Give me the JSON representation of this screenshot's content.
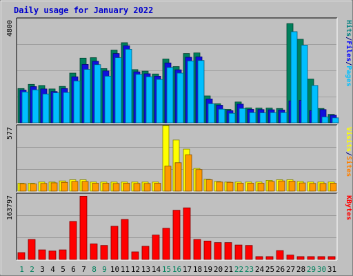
{
  "chart_data": {
    "type": "bar",
    "title": "Daily usage for January 2022",
    "categories": [
      "1",
      "2",
      "3",
      "4",
      "5",
      "6",
      "7",
      "8",
      "9",
      "10",
      "11",
      "12",
      "13",
      "14",
      "15",
      "16",
      "17",
      "18",
      "19",
      "20",
      "21",
      "22",
      "23",
      "24",
      "25",
      "26",
      "27",
      "28",
      "29",
      "30",
      "31"
    ],
    "weekend_days": [
      "1",
      "2",
      "8",
      "9",
      "15",
      "16",
      "22",
      "23",
      "29",
      "30"
    ],
    "panels": [
      {
        "id": "hits-files-pages",
        "axis_max_label": "4800",
        "ylim": [
          0,
          4800
        ],
        "legend": [
          {
            "label": "Pages",
            "color": "#00bfff"
          },
          {
            "label": "/",
            "color": "#000080"
          },
          {
            "label": "Files",
            "color": "#0000ff"
          },
          {
            "label": "/",
            "color": "#000080"
          },
          {
            "label": "Hits",
            "color": "#008080"
          }
        ],
        "series": [
          {
            "name": "Hits",
            "color": "#00805c",
            "values": [
              1580,
              1770,
              1720,
              1560,
              1680,
              2290,
              2980,
              3000,
              2500,
              3350,
              3690,
              2450,
              2380,
              2250,
              2940,
              2590,
              3190,
              3220,
              1240,
              880,
              620,
              960,
              690,
              680,
              680,
              660,
              4570,
              3850,
              2020,
              660,
              390
            ]
          },
          {
            "name": "Files",
            "color": "#1010dd",
            "values": [
              1510,
              1670,
              1560,
              1440,
              1580,
              2120,
              2690,
              2840,
              2390,
              3190,
              3550,
              2350,
              2260,
              2150,
              2760,
              2440,
              3020,
              3040,
              1100,
              810,
              560,
              860,
              620,
              610,
              600,
              590,
              1010,
              1030,
              560,
              610,
              350
            ]
          },
          {
            "name": "Pages",
            "color": "#00bfff",
            "values": [
              1420,
              1520,
              1330,
              1380,
              1400,
              1930,
              2460,
              2680,
              2150,
              3000,
              3390,
              2230,
              2120,
              2000,
              2550,
              2290,
              2850,
              2870,
              880,
              630,
              440,
              660,
              470,
              460,
              470,
              470,
              4200,
              3580,
              1720,
              270,
              230
            ]
          }
        ]
      },
      {
        "id": "visits-sites",
        "axis_max_label": "577",
        "ylim": [
          0,
          577
        ],
        "legend": [
          {
            "label": "Sites",
            "color": "#ff8000"
          },
          {
            "label": "/",
            "color": "#000080"
          },
          {
            "label": "Visits",
            "color": "#ffff00"
          }
        ],
        "series": [
          {
            "name": "Visits",
            "color": "#ffff00",
            "values": [
              70,
              70,
              80,
              80,
              90,
              100,
              100,
              80,
              80,
              80,
              80,
              80,
              80,
              80,
              577,
              450,
              370,
              200,
              105,
              85,
              80,
              80,
              80,
              80,
              95,
              100,
              100,
              85,
              80,
              80,
              80
            ]
          },
          {
            "name": "Sites",
            "color": "#ff9900",
            "values": [
              65,
              63,
              68,
              73,
              78,
              85,
              85,
              70,
              70,
              68,
              70,
              68,
              68,
              70,
              220,
              250,
              320,
              190,
              100,
              80,
              78,
              70,
              70,
              70,
              85,
              90,
              88,
              72,
              68,
              68,
              70
            ]
          }
        ]
      },
      {
        "id": "kbytes",
        "axis_max_label": "163797",
        "ylim": [
          0,
          163797
        ],
        "legend": [
          {
            "label": "KBytes",
            "color": "#ff0000"
          }
        ],
        "series": [
          {
            "name": "KBytes",
            "color": "#ff0000",
            "values": [
              17000,
              50000,
              24000,
              21000,
              24000,
              95000,
              158000,
              39000,
              35000,
              83000,
              100000,
              19000,
              33000,
              61000,
              78000,
              123000,
              129000,
              50000,
              46000,
              42000,
              42000,
              36000,
              35000,
              7000,
              7000,
              22000,
              11000,
              7000,
              7000,
              7000,
              7000
            ]
          }
        ]
      }
    ]
  }
}
